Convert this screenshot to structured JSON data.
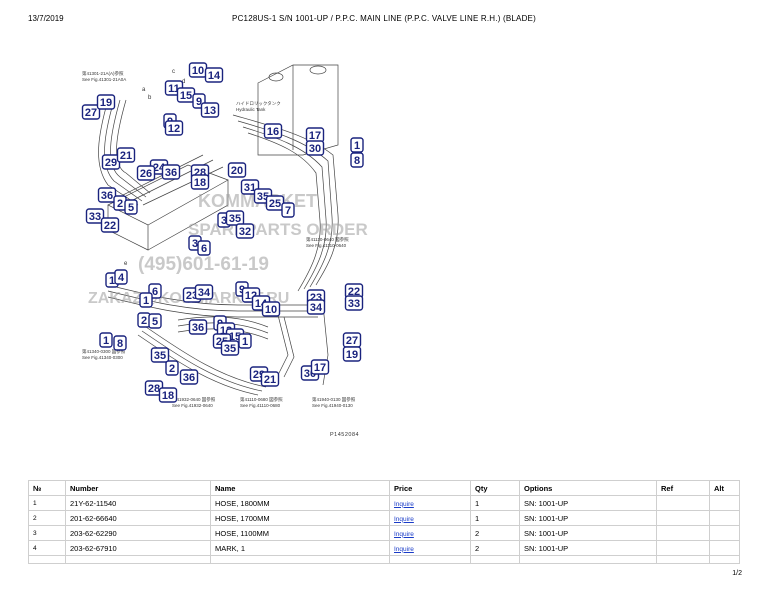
{
  "header": {
    "date": "13/7/2019",
    "title": "PC128US-1 S/N 1001-UP / P.P.C. MAIN LINE (P.P.C. VALVE LINE R.H.) (BLADE)"
  },
  "diagram": {
    "caption": "P1452084",
    "watermark": [
      "KOMMARKET",
      "SPAREPARTS ORDER",
      "(495)601-61-19",
      "ZAKAZ@KOMMARKET.RU"
    ],
    "callouts": [
      "10",
      "14",
      "11",
      "15",
      "9",
      "13",
      "27",
      "19",
      "9",
      "12",
      "16",
      "17",
      "30",
      "1",
      "8",
      "29",
      "21",
      "24",
      "26",
      "36",
      "28",
      "18",
      "20",
      "36",
      "2",
      "5",
      "31",
      "35",
      "25",
      "7",
      "33",
      "22",
      "3",
      "35",
      "32",
      "3",
      "6",
      "1",
      "4",
      "6",
      "1",
      "23",
      "34",
      "9",
      "12",
      "14",
      "10",
      "22",
      "33",
      "23",
      "34",
      "2",
      "5",
      "36",
      "9",
      "12",
      "15",
      "25",
      "35",
      "1",
      "27",
      "19",
      "1",
      "8",
      "35",
      "2",
      "36",
      "30",
      "17",
      "29",
      "21",
      "28",
      "18"
    ],
    "refs": [
      {
        "jp": "第41301-21A(A)参照",
        "en": "See Fig.41301-21A0A"
      },
      {
        "jp": "ハイドロリックタンク",
        "en": "Hydraulic Tank"
      },
      {
        "jp": "第41110-0640 図参照",
        "en": "See Fig.41110-0640"
      },
      {
        "jp": "第41340-0300 図参照",
        "en": "See Fig.41340-0300"
      },
      {
        "jp": "第41932-0640 図参照",
        "en": "See Fig.41932-0640"
      },
      {
        "jp": "第41110-0680 図参照",
        "en": "See Fig.41110-0680"
      },
      {
        "jp": "第41940-0130 図参照",
        "en": "See Fig.41940-0130"
      }
    ],
    "letters": [
      "c",
      "d",
      "a",
      "b",
      "e",
      "f"
    ]
  },
  "table": {
    "headers": [
      "№",
      "Number",
      "Name",
      "Price",
      "Qty",
      "Options",
      "Ref",
      "Alt"
    ],
    "rows": [
      {
        "no": "1",
        "number": "21Y-62-11540",
        "name": "HOSE, 1800MM",
        "price": "Inquire",
        "qty": "1",
        "options": "SN: 1001-UP",
        "ref": "",
        "alt": ""
      },
      {
        "no": "2",
        "number": "201-62-66640",
        "name": "HOSE, 1700MM",
        "price": "Inquire",
        "qty": "1",
        "options": "SN: 1001-UP",
        "ref": "",
        "alt": ""
      },
      {
        "no": "3",
        "number": "203-62-62290",
        "name": "HOSE, 1100MM",
        "price": "Inquire",
        "qty": "2",
        "options": "SN: 1001-UP",
        "ref": "",
        "alt": ""
      },
      {
        "no": "4",
        "number": "203-62-67910",
        "name": "MARK, 1",
        "price": "Inquire",
        "qty": "2",
        "options": "SN: 1001-UP",
        "ref": "",
        "alt": ""
      }
    ]
  },
  "pager": "1/2",
  "colors": {
    "callout_border": "#1a237e",
    "callout_text": "#1a237e",
    "link": "#1a3cc8",
    "watermark": "#9e9e9e"
  }
}
